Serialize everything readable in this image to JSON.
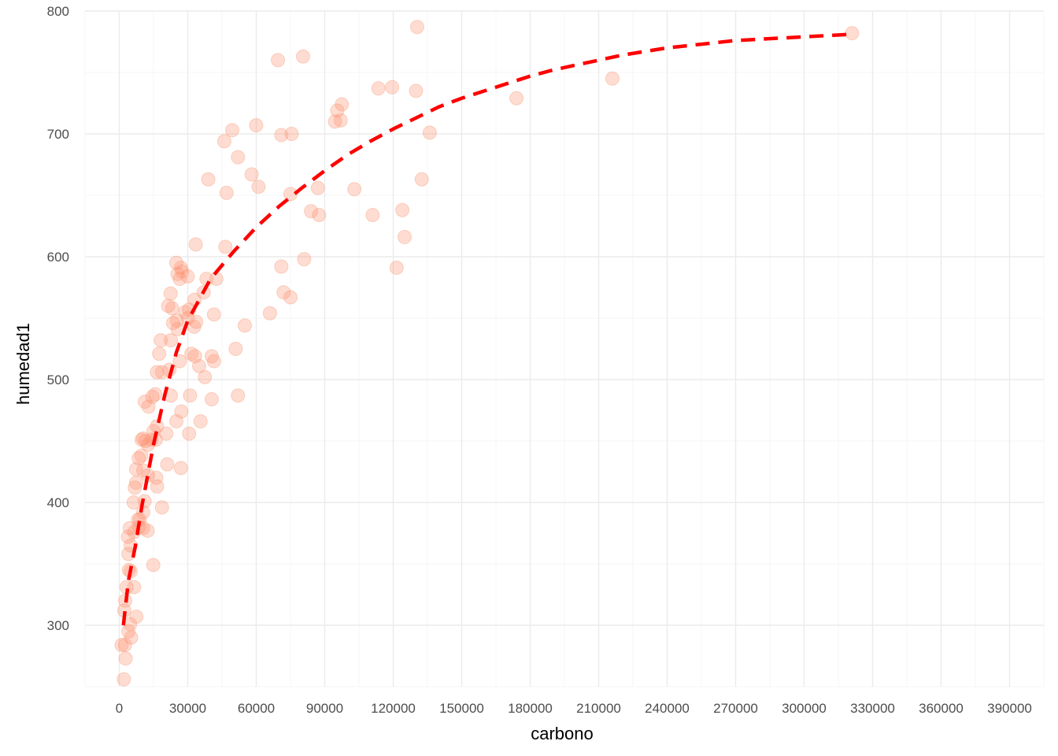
{
  "chart_data": {
    "type": "scatter",
    "title": "",
    "xlabel": "carbono",
    "ylabel": "humedad1",
    "xlim": [
      -15000,
      405000
    ],
    "ylim": [
      250,
      800
    ],
    "x_ticks": [
      0,
      30000,
      60000,
      90000,
      120000,
      150000,
      180000,
      210000,
      240000,
      270000,
      300000,
      330000,
      360000,
      390000
    ],
    "y_ticks": [
      300,
      400,
      500,
      600,
      700,
      800
    ],
    "grid": true,
    "legend": "none",
    "colors": {
      "points": "#ff8c69",
      "points_stroke": "#f4a582",
      "fit_line": "#ff0000",
      "grid_major": "#ebebeb",
      "grid_minor": "#f5f5f5",
      "tick_text": "#4d4d4d"
    },
    "series": [
      {
        "type": "scatter",
        "points": [
          [
            2000,
            256
          ],
          [
            1000,
            284
          ],
          [
            2500,
            284
          ],
          [
            2800,
            273
          ],
          [
            2200,
            312
          ],
          [
            2600,
            320
          ],
          [
            3200,
            331
          ],
          [
            4000,
            295
          ],
          [
            4700,
            301
          ],
          [
            5200,
            290
          ],
          [
            6500,
            331
          ],
          [
            7500,
            307
          ],
          [
            4200,
            345
          ],
          [
            5000,
            344
          ],
          [
            4000,
            358
          ],
          [
            3800,
            372
          ],
          [
            5000,
            365
          ],
          [
            4600,
            379
          ],
          [
            6500,
            376
          ],
          [
            8600,
            380
          ],
          [
            9000,
            386
          ],
          [
            10400,
            379
          ],
          [
            8200,
            386
          ],
          [
            10500,
            392
          ],
          [
            12400,
            377
          ],
          [
            14900,
            349
          ],
          [
            18700,
            396
          ],
          [
            6300,
            400
          ],
          [
            6800,
            412
          ],
          [
            7400,
            416
          ],
          [
            11100,
            401
          ],
          [
            16600,
            413
          ],
          [
            16200,
            420
          ],
          [
            7400,
            427
          ],
          [
            8500,
            436
          ],
          [
            9700,
            438
          ],
          [
            10500,
            426
          ],
          [
            12600,
            422
          ],
          [
            21000,
            431
          ],
          [
            27000,
            428
          ],
          [
            9800,
            451
          ],
          [
            10500,
            452
          ],
          [
            11500,
            450
          ],
          [
            12600,
            447
          ],
          [
            14000,
            451
          ],
          [
            16000,
            451
          ],
          [
            15000,
            458
          ],
          [
            16500,
            462
          ],
          [
            20600,
            456
          ],
          [
            25000,
            466
          ],
          [
            30600,
            456
          ],
          [
            35600,
            466
          ],
          [
            11200,
            482
          ],
          [
            12800,
            478
          ],
          [
            14500,
            486
          ],
          [
            15800,
            488
          ],
          [
            22600,
            487
          ],
          [
            27200,
            474
          ],
          [
            16500,
            506
          ],
          [
            18700,
            506
          ],
          [
            22000,
            508
          ],
          [
            26500,
            515
          ],
          [
            31000,
            487
          ],
          [
            35000,
            511
          ],
          [
            37500,
            502
          ],
          [
            40500,
            484
          ],
          [
            40500,
            519
          ],
          [
            41500,
            515
          ],
          [
            51000,
            525
          ],
          [
            52000,
            487
          ],
          [
            17500,
            521
          ],
          [
            18200,
            532
          ],
          [
            22600,
            532
          ],
          [
            23600,
            546
          ],
          [
            25200,
            548
          ],
          [
            25600,
            541
          ],
          [
            30000,
            550
          ],
          [
            31600,
            521
          ],
          [
            33200,
            519
          ],
          [
            33700,
            547
          ],
          [
            32800,
            543
          ],
          [
            21400,
            560
          ],
          [
            22500,
            570
          ],
          [
            23200,
            558
          ],
          [
            28900,
            555
          ],
          [
            30600,
            557
          ],
          [
            30000,
            584
          ],
          [
            33000,
            565
          ],
          [
            37000,
            571
          ],
          [
            38200,
            582
          ],
          [
            41500,
            553
          ],
          [
            42500,
            582
          ],
          [
            55000,
            544
          ],
          [
            66000,
            554
          ],
          [
            25500,
            586
          ],
          [
            25000,
            595
          ],
          [
            26500,
            582
          ],
          [
            27000,
            591
          ],
          [
            27500,
            588
          ],
          [
            33500,
            610
          ],
          [
            46500,
            608
          ],
          [
            71000,
            592
          ],
          [
            72000,
            571
          ],
          [
            75000,
            567
          ],
          [
            81000,
            598
          ],
          [
            39000,
            663
          ],
          [
            46000,
            694
          ],
          [
            49500,
            703
          ],
          [
            52000,
            681
          ],
          [
            47000,
            652
          ],
          [
            58000,
            667
          ],
          [
            60000,
            707
          ],
          [
            61000,
            657
          ],
          [
            69500,
            760
          ],
          [
            71000,
            699
          ],
          [
            75500,
            700
          ],
          [
            75000,
            651
          ],
          [
            80500,
            763
          ],
          [
            84000,
            637
          ],
          [
            87000,
            656
          ],
          [
            87500,
            634
          ],
          [
            94500,
            710
          ],
          [
            95500,
            719
          ],
          [
            97000,
            711
          ],
          [
            97500,
            724
          ],
          [
            103000,
            655
          ],
          [
            111000,
            634
          ],
          [
            113500,
            737
          ],
          [
            119500,
            738
          ],
          [
            121500,
            591
          ],
          [
            124000,
            638
          ],
          [
            125000,
            616
          ],
          [
            130000,
            735
          ],
          [
            130500,
            787
          ],
          [
            132500,
            663
          ],
          [
            136000,
            701
          ],
          [
            174000,
            729
          ],
          [
            216000,
            745
          ],
          [
            321000,
            782
          ]
        ]
      },
      {
        "type": "line",
        "style": "dashed",
        "points": [
          [
            1800,
            300
          ],
          [
            4000,
            336
          ],
          [
            7000,
            364
          ],
          [
            10000,
            398
          ],
          [
            15000,
            447
          ],
          [
            20000,
            488
          ],
          [
            25000,
            522
          ],
          [
            30000,
            548
          ],
          [
            40000,
            582
          ],
          [
            50000,
            604
          ],
          [
            60000,
            624
          ],
          [
            70000,
            641
          ],
          [
            80000,
            656
          ],
          [
            90000,
            670
          ],
          [
            100000,
            683
          ],
          [
            110000,
            694
          ],
          [
            120000,
            704
          ],
          [
            130000,
            713
          ],
          [
            140000,
            722
          ],
          [
            150000,
            729
          ],
          [
            160000,
            735
          ],
          [
            170000,
            741
          ],
          [
            180000,
            747
          ],
          [
            190000,
            752
          ],
          [
            200000,
            756
          ],
          [
            210000,
            760
          ],
          [
            220000,
            764
          ],
          [
            230000,
            767
          ],
          [
            240000,
            770
          ],
          [
            250000,
            772
          ],
          [
            260000,
            774
          ],
          [
            270000,
            776
          ],
          [
            280000,
            777
          ],
          [
            290000,
            778
          ],
          [
            300000,
            779
          ],
          [
            310000,
            780
          ],
          [
            320000,
            781
          ]
        ]
      }
    ]
  }
}
